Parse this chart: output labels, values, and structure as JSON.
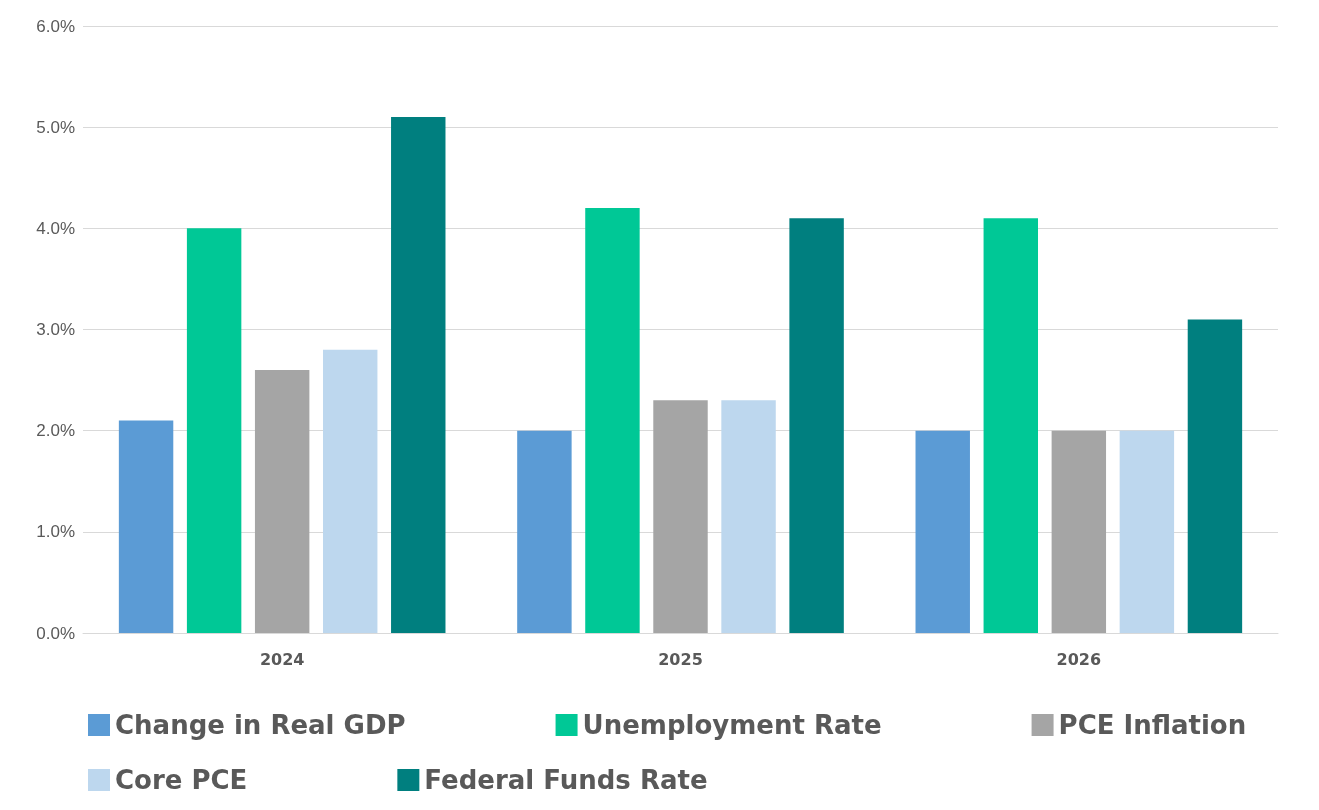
{
  "chart_data": {
    "type": "bar",
    "categories": [
      "2024",
      "2025",
      "2026"
    ],
    "series": [
      {
        "name": "Change in Real GDP",
        "color": "#5b9bd5",
        "values": [
          2.1,
          2.0,
          2.0
        ]
      },
      {
        "name": "Unemployment Rate",
        "color": "#00c896",
        "values": [
          4.0,
          4.2,
          4.1
        ]
      },
      {
        "name": "PCE Inflation",
        "color": "#a5a5a5",
        "values": [
          2.6,
          2.3,
          2.0
        ]
      },
      {
        "name": "Core PCE",
        "color": "#bdd7ee",
        "values": [
          2.8,
          2.3,
          2.0
        ]
      },
      {
        "name": "Federal Funds Rate",
        "color": "#007f7f",
        "values": [
          5.1,
          4.1,
          3.1
        ]
      }
    ],
    "ylim": [
      0,
      6
    ],
    "yticks": [
      {
        "value": 0,
        "label": "0.0%"
      },
      {
        "value": 1,
        "label": "1.0%"
      },
      {
        "value": 2,
        "label": "2.0%"
      },
      {
        "value": 3,
        "label": "3.0%"
      },
      {
        "value": 4,
        "label": "4.0%"
      },
      {
        "value": 5,
        "label": "5.0%"
      },
      {
        "value": 6,
        "label": "6.0%"
      }
    ],
    "grid": "y",
    "legend": "bottom"
  }
}
